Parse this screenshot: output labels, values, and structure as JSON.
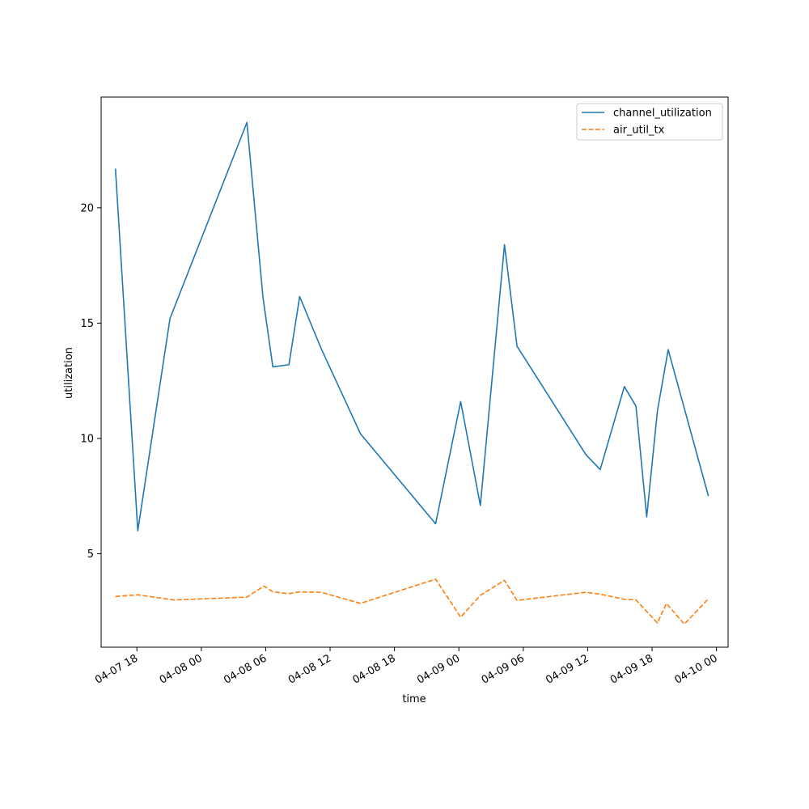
{
  "chart_data": {
    "type": "line",
    "xlabel": "time",
    "ylabel": "utilization",
    "x_ticks": [
      "04-07 18",
      "04-08 00",
      "04-08 06",
      "04-08 12",
      "04-08 18",
      "04-09 00",
      "04-09 06",
      "04-09 12",
      "04-09 18",
      "04-10 00"
    ],
    "y_ticks": [
      5,
      10,
      15,
      20
    ],
    "xlim": [
      "2024-04-07T14:40",
      "2024-04-10T01:05"
    ],
    "ylim": [
      0.95,
      24.8
    ],
    "grid": false,
    "legend_position": "top-right",
    "series": [
      {
        "name": "channel_utilization",
        "color": "#1f77b4",
        "style": "solid",
        "points": [
          [
            "2024-04-07T16:00",
            21.7
          ],
          [
            "2024-04-07T18:05",
            6.0
          ],
          [
            "2024-04-07T21:05",
            15.2
          ],
          [
            "2024-04-08T04:15",
            23.7
          ],
          [
            "2024-04-08T05:45",
            16.1
          ],
          [
            "2024-04-08T06:40",
            13.1
          ],
          [
            "2024-04-08T08:10",
            13.2
          ],
          [
            "2024-04-08T09:10",
            16.15
          ],
          [
            "2024-04-08T11:10",
            13.9
          ],
          [
            "2024-04-08T14:50",
            10.2
          ],
          [
            "2024-04-08T21:50",
            6.3
          ],
          [
            "2024-04-09T00:10",
            11.6
          ],
          [
            "2024-04-09T02:00",
            7.1
          ],
          [
            "2024-04-09T04:15",
            18.4
          ],
          [
            "2024-04-09T05:25",
            14.0
          ],
          [
            "2024-04-09T11:50",
            9.3
          ],
          [
            "2024-04-09T13:10",
            8.65
          ],
          [
            "2024-04-09T15:25",
            12.25
          ],
          [
            "2024-04-09T16:30",
            11.4
          ],
          [
            "2024-04-09T17:30",
            6.6
          ],
          [
            "2024-04-09T18:30",
            11.2
          ],
          [
            "2024-04-09T19:30",
            13.85
          ],
          [
            "2024-04-09T23:15",
            7.5
          ]
        ]
      },
      {
        "name": "air_util_tx",
        "color": "#ff7f0e",
        "style": "dashed",
        "points": [
          [
            "2024-04-07T16:00",
            3.15
          ],
          [
            "2024-04-07T18:05",
            3.22
          ],
          [
            "2024-04-07T21:25",
            3.0
          ],
          [
            "2024-04-08T04:15",
            3.12
          ],
          [
            "2024-04-08T05:50",
            3.6
          ],
          [
            "2024-04-08T06:40",
            3.35
          ],
          [
            "2024-04-08T08:10",
            3.27
          ],
          [
            "2024-04-08T09:10",
            3.35
          ],
          [
            "2024-04-08T11:10",
            3.33
          ],
          [
            "2024-04-08T14:50",
            2.85
          ],
          [
            "2024-04-08T21:50",
            3.9
          ],
          [
            "2024-04-09T00:10",
            2.25
          ],
          [
            "2024-04-09T02:00",
            3.2
          ],
          [
            "2024-04-09T04:15",
            3.85
          ],
          [
            "2024-04-09T05:25",
            2.98
          ],
          [
            "2024-04-09T11:50",
            3.33
          ],
          [
            "2024-04-09T13:10",
            3.25
          ],
          [
            "2024-04-09T15:25",
            3.03
          ],
          [
            "2024-04-09T16:30",
            3.0
          ],
          [
            "2024-04-09T18:30",
            2.0
          ],
          [
            "2024-04-09T19:20",
            2.85
          ],
          [
            "2024-04-09T21:00",
            1.95
          ],
          [
            "2024-04-09T23:15",
            3.05
          ]
        ]
      }
    ]
  }
}
